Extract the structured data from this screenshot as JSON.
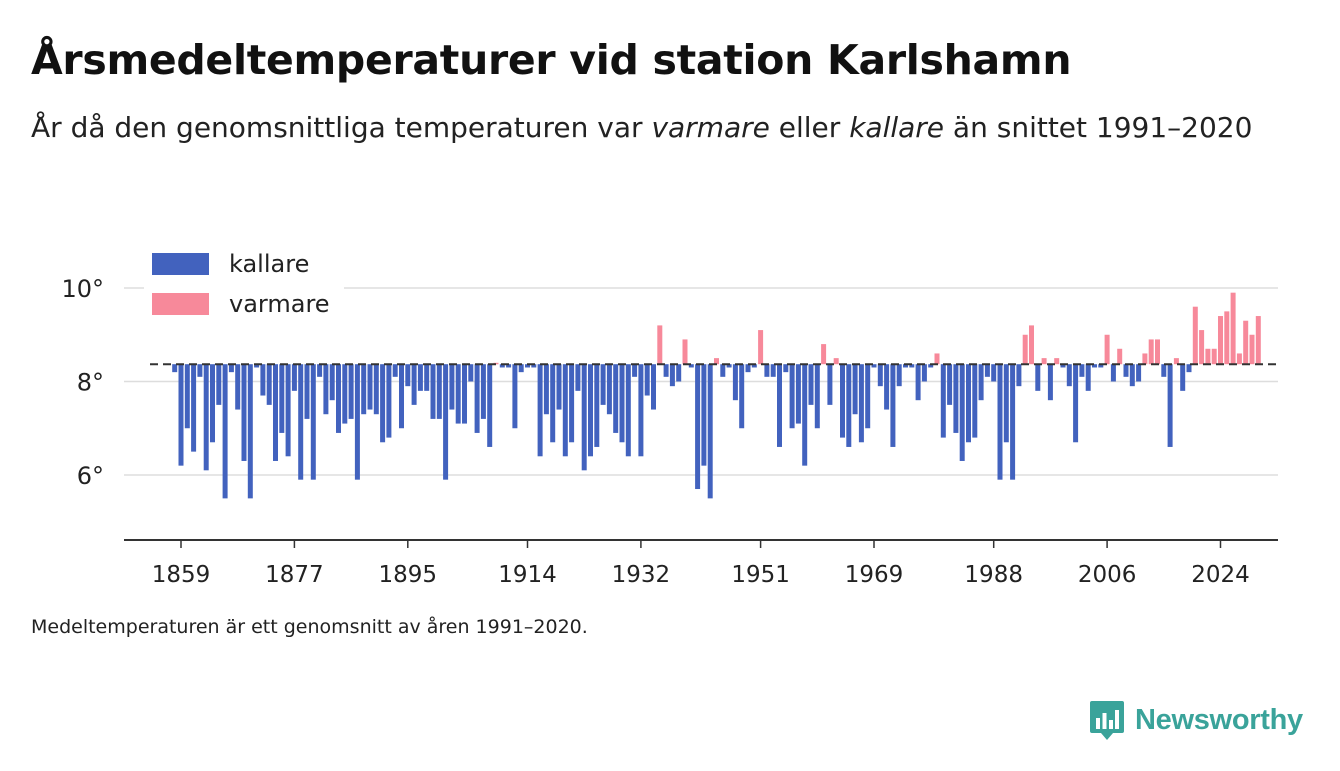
{
  "title": "Årsmedeltemperaturer vid station Karlshamn",
  "subtitle": {
    "part1": "År då den genomsnittliga temperaturen var ",
    "warm_word": "varmare",
    "part2": " eller ",
    "cold_word": "kallare",
    "part3": " än snittet 1991–2020"
  },
  "footnote": "Medeltemperaturen är ett genomsnitt av åren 1991–2020.",
  "brand": {
    "name": "Newsworthy",
    "icon": "newsworthy-logo-icon"
  },
  "colors": {
    "cold": "#4262be",
    "warm": "#f7899a",
    "baseline": "#333333",
    "grid": "#dddddd",
    "axis": "#333333",
    "brand": "#3aa39a"
  },
  "chart_data": {
    "type": "bar",
    "baseline": 8.37,
    "baseline_style": "dashed",
    "xlabel": "",
    "ylabel": "",
    "ylim": [
      4.8,
      11
    ],
    "xlim": [
      1850,
      2031
    ],
    "yticks": [
      6,
      8,
      10
    ],
    "ytick_labels": [
      "6°",
      "8°",
      "10°"
    ],
    "xticks": [
      1859,
      1877,
      1895,
      1914,
      1932,
      1951,
      1969,
      1988,
      2006,
      2024
    ],
    "grid": true,
    "legend": {
      "position": "top-left",
      "entries": [
        {
          "label": "kallare",
          "color_key": "cold"
        },
        {
          "label": "varmare",
          "color_key": "warm"
        }
      ]
    },
    "start_year": 1858,
    "values": [
      8.2,
      6.2,
      7.0,
      6.5,
      8.1,
      6.1,
      6.7,
      7.5,
      5.5,
      8.2,
      7.4,
      6.3,
      5.5,
      8.3,
      7.7,
      7.5,
      6.3,
      6.9,
      6.4,
      7.8,
      5.9,
      7.2,
      5.9,
      8.1,
      7.3,
      7.6,
      6.9,
      7.1,
      7.2,
      5.9,
      7.3,
      7.4,
      7.3,
      6.7,
      6.8,
      8.1,
      7.0,
      7.9,
      7.5,
      7.8,
      7.8,
      7.2,
      7.2,
      5.9,
      7.4,
      7.1,
      7.1,
      8.0,
      6.9,
      7.2,
      6.6,
      8.4,
      8.3,
      8.3,
      7.0,
      8.2,
      8.3,
      8.3,
      6.4,
      7.3,
      6.7,
      7.4,
      6.4,
      6.7,
      7.8,
      6.1,
      6.4,
      6.6,
      7.5,
      7.3,
      6.9,
      6.7,
      6.4,
      8.1,
      6.4,
      7.7,
      7.4,
      9.2,
      8.1,
      7.9,
      8.0,
      8.9,
      8.3,
      5.7,
      6.2,
      5.5,
      8.5,
      8.1,
      8.3,
      7.6,
      7.0,
      8.2,
      8.3,
      9.1,
      8.1,
      8.1,
      6.6,
      8.2,
      7.0,
      7.1,
      6.2,
      7.5,
      7.0,
      8.8,
      7.5,
      8.5,
      6.8,
      6.6,
      7.3,
      6.7,
      7.0,
      8.3,
      7.9,
      7.4,
      6.6,
      7.9,
      8.3,
      8.3,
      7.6,
      8.0,
      8.3,
      8.6,
      6.8,
      7.5,
      6.9,
      6.3,
      6.7,
      6.8,
      7.6,
      8.1,
      8.0,
      5.9,
      6.7,
      5.9,
      7.9,
      9.0,
      9.2,
      7.8,
      8.5,
      7.6,
      8.5,
      8.3,
      7.9,
      6.7,
      8.1,
      7.8,
      8.3,
      8.3,
      9.0,
      8.0,
      8.7,
      8.1,
      7.9,
      8.0,
      8.6,
      8.9,
      8.9,
      8.1,
      6.6,
      8.5,
      7.8,
      8.2,
      9.6,
      9.1,
      8.7,
      8.7,
      9.4,
      9.5,
      9.9,
      8.6,
      9.3,
      9.0,
      9.4
    ]
  }
}
